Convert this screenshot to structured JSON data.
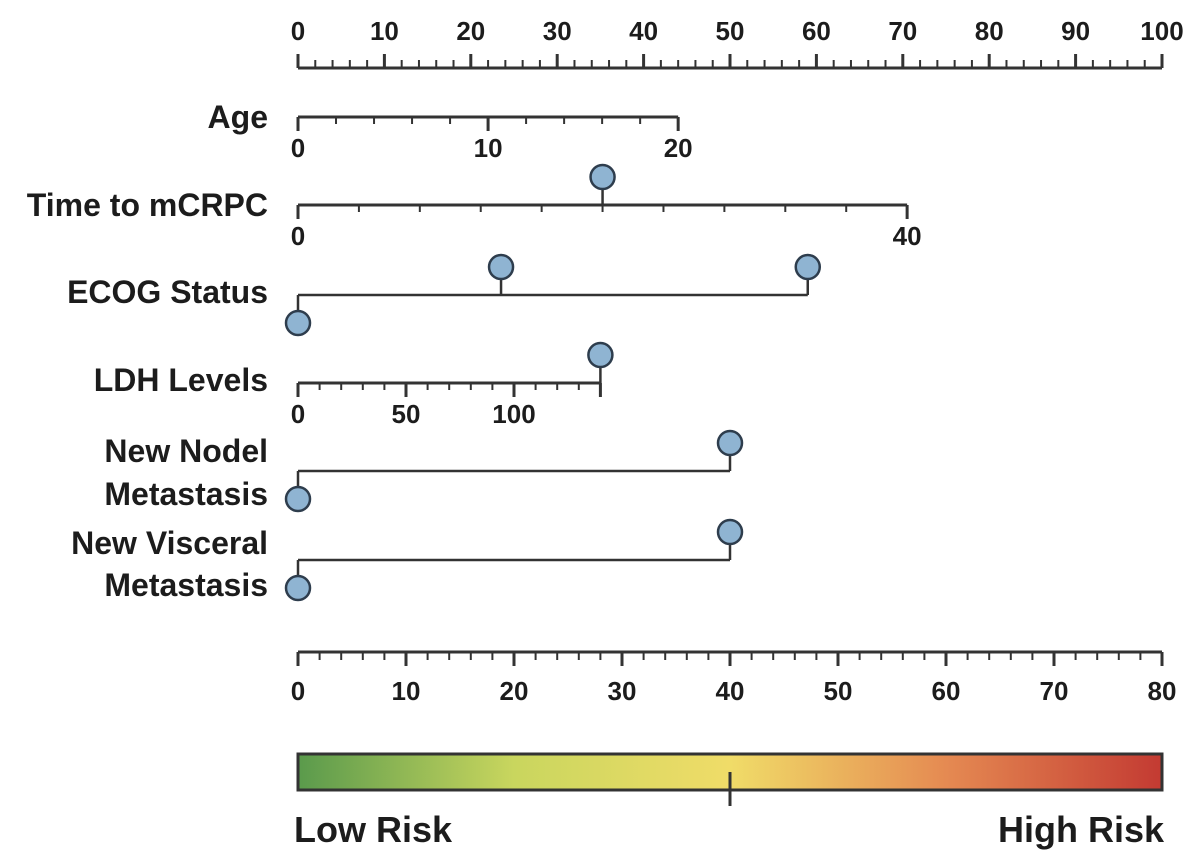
{
  "chart_data": {
    "type": "nomogram",
    "points_axis": {
      "min": 0,
      "max": 100,
      "ticks": [
        0,
        10,
        20,
        30,
        40,
        50,
        60,
        70,
        80,
        90,
        100
      ],
      "minor_step": 2
    },
    "variables": [
      {
        "name": "Age",
        "label_lines": [
          "Age"
        ],
        "scale": {
          "ticks": [
            0,
            10,
            20
          ],
          "tick_labels": [
            "0",
            "10",
            "20"
          ],
          "minor_step": 2,
          "max": 20,
          "end_points": 44
        },
        "markers": [],
        "labels_below": true
      },
      {
        "name": "Time to mCRPC",
        "label_lines": [
          "Time to mCRPC"
        ],
        "scale": {
          "ticks": [
            0,
            40
          ],
          "tick_labels": [
            "0",
            "40"
          ],
          "minor_step": 4,
          "max": 40,
          "end_points": 70.5
        },
        "markers": [
          {
            "position": 20,
            "side": "above"
          }
        ],
        "labels_below": true
      },
      {
        "name": "ECOG Status",
        "label_lines": [
          "ECOG Status"
        ],
        "bracket": {
          "start_points": 0,
          "end_points": 59
        },
        "markers": [
          {
            "points": 0,
            "side": "below"
          },
          {
            "points": 23.5,
            "side": "above"
          },
          {
            "points": 59,
            "side": "above"
          }
        ]
      },
      {
        "name": "LDH Levels",
        "label_lines": [
          "LDH Levels"
        ],
        "scale": {
          "ticks": [
            0,
            50,
            100
          ],
          "tick_labels": [
            "0",
            "50",
            "100"
          ],
          "minor_step": 10,
          "max": 140,
          "end_points": 35
        },
        "markers": [
          {
            "position": 140,
            "side": "above"
          }
        ],
        "labels_below": true
      },
      {
        "name": "New Nodel Metastasis",
        "label_lines": [
          "New Nodel",
          "Metastasis"
        ],
        "bracket": {
          "start_points": 0,
          "end_points": 50
        },
        "markers": [
          {
            "points": 0,
            "side": "below"
          },
          {
            "points": 50,
            "side": "above"
          }
        ]
      },
      {
        "name": "New Visceral Metastasis",
        "label_lines": [
          "New Visceral",
          "Metastasis"
        ],
        "bracket": {
          "start_points": 0,
          "end_points": 50
        },
        "markers": [
          {
            "points": 0,
            "side": "below"
          },
          {
            "points": 50,
            "side": "above"
          }
        ]
      }
    ],
    "total_points_axis": {
      "min": 0,
      "max": 80,
      "ticks": [
        0,
        10,
        20,
        30,
        40,
        50,
        60,
        70,
        80
      ],
      "minor_step": 2
    },
    "risk_scale": {
      "low_label": "Low Risk",
      "high_label": "High Risk",
      "midpoint_total_points": 40,
      "colors": [
        "#5a9a4c",
        "#c9d65e",
        "#f0dc68",
        "#e58a52",
        "#c33a32"
      ]
    }
  }
}
